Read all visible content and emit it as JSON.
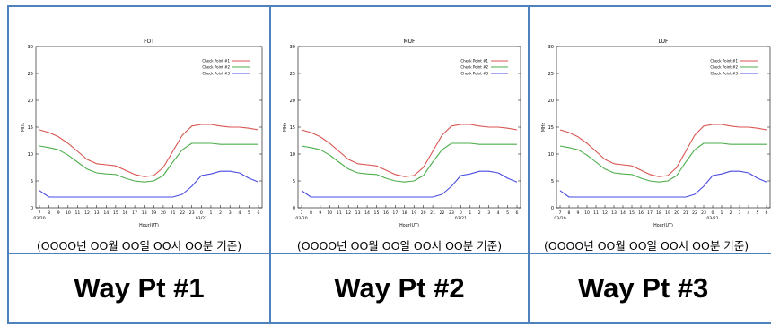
{
  "colors": {
    "border": "#4f81bd",
    "series1": "#d9534f",
    "series2": "#4cae4c",
    "series3": "#4a4ae0"
  },
  "chart_data": [
    {
      "type": "line",
      "title": "FOT",
      "xlabel": "Hour(UT)",
      "ylabel": "MHz",
      "x_tick_labels": [
        "7",
        "8",
        "9",
        "10",
        "11",
        "12",
        "13",
        "14",
        "15",
        "16",
        "17",
        "18",
        "19",
        "20",
        "21",
        "22",
        "23",
        "0",
        "1",
        "2",
        "3",
        "4",
        "5",
        "6"
      ],
      "date_labels": [
        "03/20",
        "03/21"
      ],
      "yticks": [
        0,
        5,
        10,
        15,
        20,
        25,
        30
      ],
      "ylim": [
        0,
        30
      ],
      "grid": false,
      "legend": "top-right",
      "series": [
        {
          "name": "Check Point #1",
          "values": [
            14.5,
            14.0,
            13.2,
            12.0,
            10.5,
            9.0,
            8.2,
            8.0,
            7.8,
            7.0,
            6.2,
            5.8,
            6.0,
            7.5,
            10.5,
            13.5,
            15.2,
            15.5,
            15.5,
            15.2,
            15.0,
            15.0,
            14.8,
            14.5
          ]
        },
        {
          "name": "Check Point #2",
          "values": [
            11.5,
            11.2,
            10.8,
            9.8,
            8.5,
            7.2,
            6.5,
            6.3,
            6.2,
            5.5,
            5.0,
            4.8,
            5.0,
            6.0,
            8.5,
            10.8,
            12.0,
            12.0,
            12.0,
            11.8,
            11.8,
            11.8,
            11.8,
            11.8
          ]
        },
        {
          "name": "Check Point #3",
          "values": [
            3.2,
            2.0,
            2.0,
            2.0,
            2.0,
            2.0,
            2.0,
            2.0,
            2.0,
            2.0,
            2.0,
            2.0,
            2.0,
            2.0,
            2.0,
            2.5,
            4.0,
            6.0,
            6.3,
            6.8,
            6.8,
            6.5,
            5.5,
            4.8
          ]
        }
      ]
    },
    {
      "type": "line",
      "title": "MUF",
      "xlabel": "Hour(UT)",
      "ylabel": "MHz",
      "x_tick_labels": [
        "7",
        "8",
        "9",
        "10",
        "11",
        "12",
        "13",
        "14",
        "15",
        "16",
        "17",
        "18",
        "19",
        "20",
        "21",
        "22",
        "23",
        "0",
        "1",
        "2",
        "3",
        "4",
        "5",
        "6"
      ],
      "date_labels": [
        "03/20",
        "03/21"
      ],
      "yticks": [
        0,
        5,
        10,
        15,
        20,
        25,
        30
      ],
      "ylim": [
        0,
        30
      ],
      "grid": false,
      "legend": "top-right",
      "series": [
        {
          "name": "Check Point #1",
          "values": [
            14.5,
            14.0,
            13.2,
            12.0,
            10.5,
            9.0,
            8.2,
            8.0,
            7.8,
            7.0,
            6.2,
            5.8,
            6.0,
            7.5,
            10.5,
            13.5,
            15.2,
            15.5,
            15.5,
            15.2,
            15.0,
            15.0,
            14.8,
            14.5
          ]
        },
        {
          "name": "Check Point #2",
          "values": [
            11.5,
            11.2,
            10.8,
            9.8,
            8.5,
            7.2,
            6.5,
            6.3,
            6.2,
            5.5,
            5.0,
            4.8,
            5.0,
            6.0,
            8.5,
            10.8,
            12.0,
            12.0,
            12.0,
            11.8,
            11.8,
            11.8,
            11.8,
            11.8
          ]
        },
        {
          "name": "Check Point #3",
          "values": [
            3.2,
            2.0,
            2.0,
            2.0,
            2.0,
            2.0,
            2.0,
            2.0,
            2.0,
            2.0,
            2.0,
            2.0,
            2.0,
            2.0,
            2.0,
            2.5,
            4.0,
            6.0,
            6.3,
            6.8,
            6.8,
            6.5,
            5.5,
            4.8
          ]
        }
      ]
    },
    {
      "type": "line",
      "title": "LUF",
      "xlabel": "Hour(UT)",
      "ylabel": "MHz",
      "x_tick_labels": [
        "7",
        "8",
        "9",
        "10",
        "11",
        "12",
        "13",
        "14",
        "15",
        "16",
        "17",
        "18",
        "19",
        "20",
        "21",
        "22",
        "23",
        "0",
        "1",
        "2",
        "3",
        "4",
        "5",
        "6"
      ],
      "date_labels": [
        "03/20",
        "03/21"
      ],
      "yticks": [
        0,
        5,
        10,
        15,
        20,
        25,
        30
      ],
      "ylim": [
        0,
        30
      ],
      "grid": false,
      "legend": "top-right",
      "series": [
        {
          "name": "Check Point #1",
          "values": [
            14.5,
            14.0,
            13.2,
            12.0,
            10.5,
            9.0,
            8.2,
            8.0,
            7.8,
            7.0,
            6.2,
            5.8,
            6.0,
            7.5,
            10.5,
            13.5,
            15.2,
            15.5,
            15.5,
            15.2,
            15.0,
            15.0,
            14.8,
            14.5
          ]
        },
        {
          "name": "Check Point #2",
          "values": [
            11.5,
            11.2,
            10.8,
            9.8,
            8.5,
            7.2,
            6.5,
            6.3,
            6.2,
            5.5,
            5.0,
            4.8,
            5.0,
            6.0,
            8.5,
            10.8,
            12.0,
            12.0,
            12.0,
            11.8,
            11.8,
            11.8,
            11.8,
            11.8
          ]
        },
        {
          "name": "Check Point #3",
          "values": [
            3.2,
            2.0,
            2.0,
            2.0,
            2.0,
            2.0,
            2.0,
            2.0,
            2.0,
            2.0,
            2.0,
            2.0,
            2.0,
            2.0,
            2.0,
            2.5,
            4.0,
            6.0,
            6.3,
            6.8,
            6.8,
            6.5,
            5.5,
            4.8
          ]
        }
      ]
    }
  ],
  "captions": [
    "(OOOO년 OO월 OO일 OO시 OO분 기준)",
    "(OOOO년 OO월 OO일 OO시 OO분 기준)",
    "(OOOO년 OO월 OO일 OO시 OO분 기준)"
  ],
  "waypoints": [
    "Way Pt #1",
    "Way Pt #2",
    "Way Pt #3"
  ]
}
